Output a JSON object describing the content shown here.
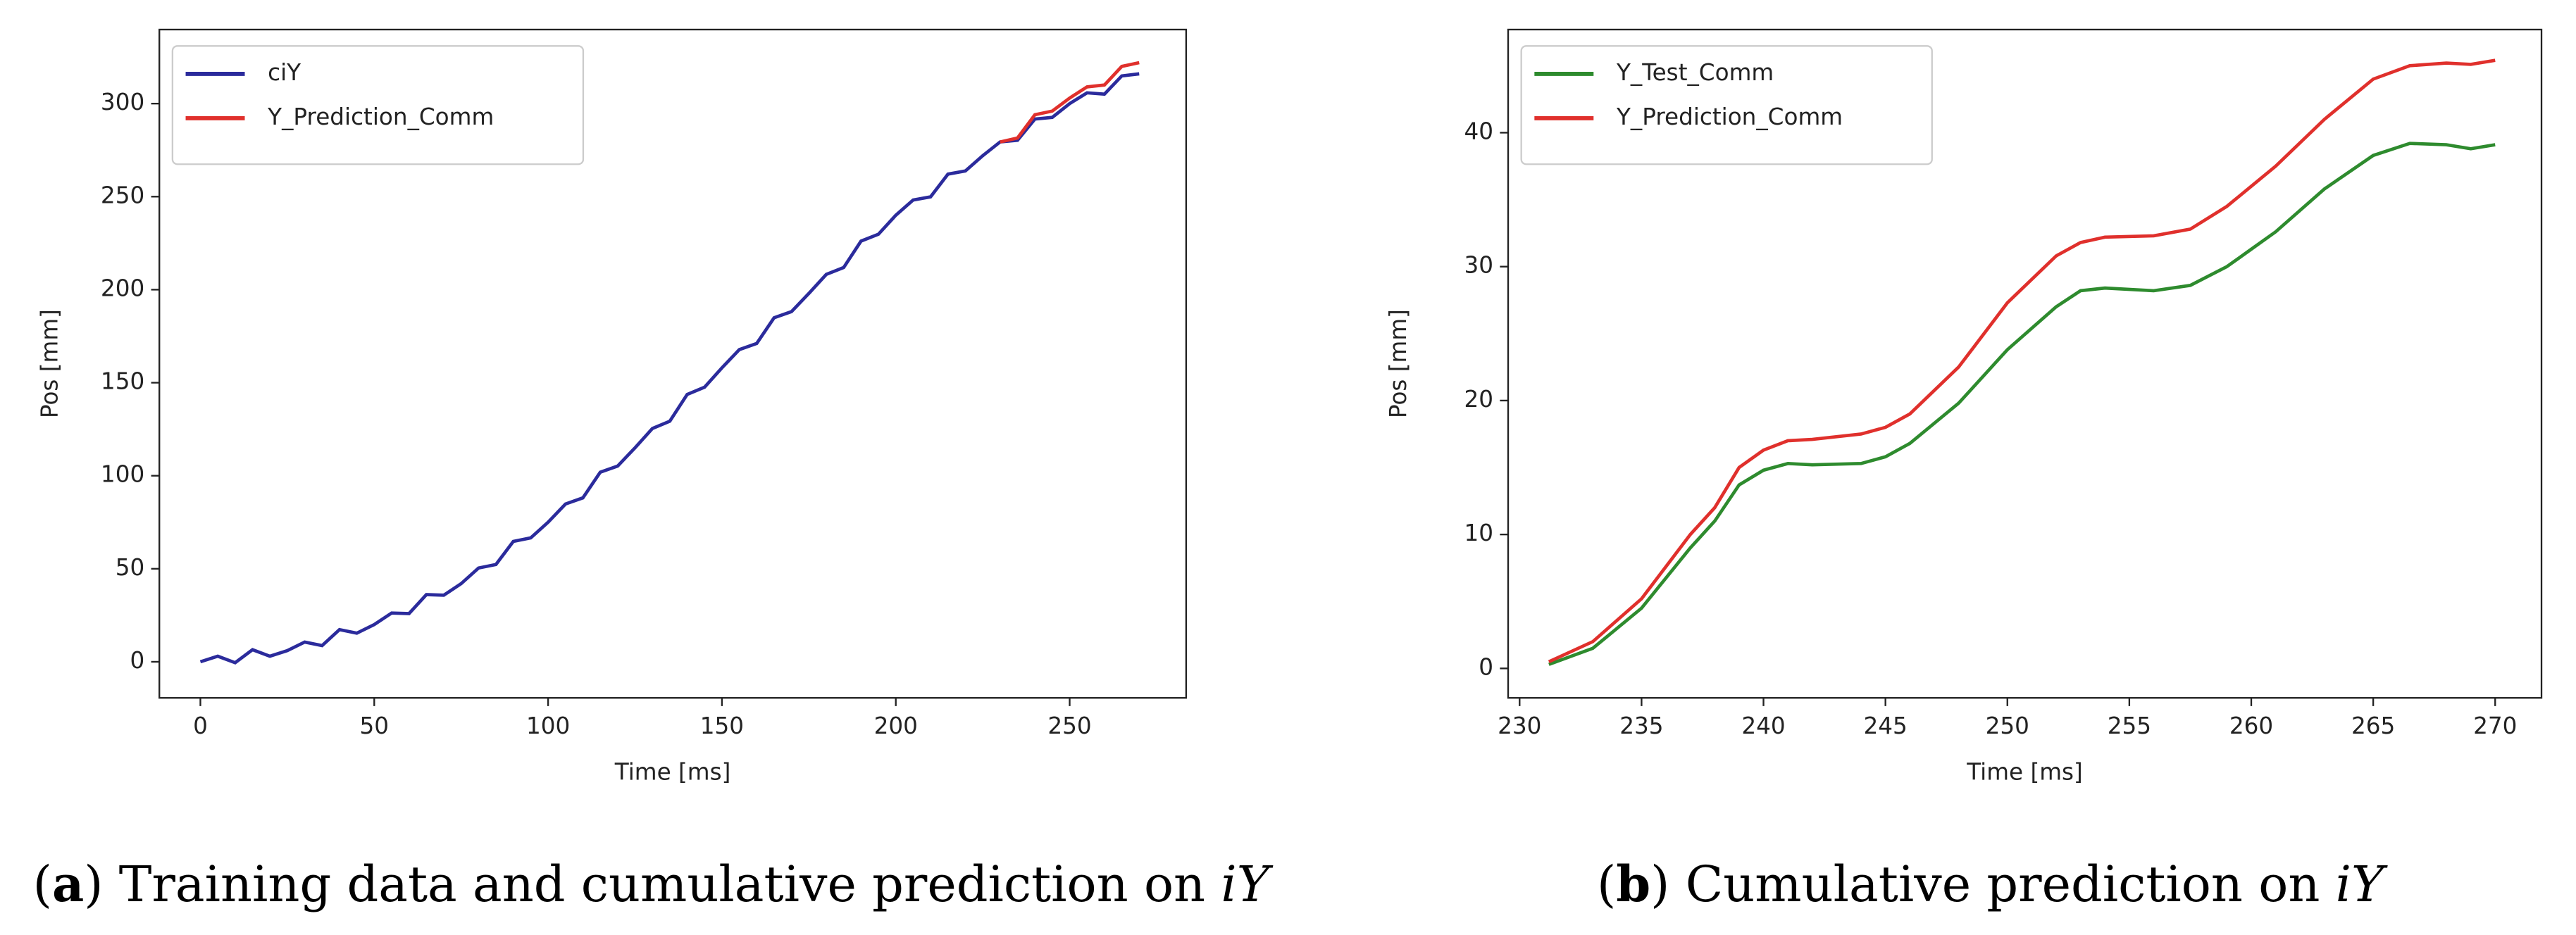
{
  "chart_data": [
    {
      "type": "line",
      "xlabel": "Time [ms]",
      "ylabel": "Pos [mm]",
      "caption": [
        "(",
        "a",
        ") Training data and cumulative prediction on ",
        "iY"
      ],
      "xlim": [
        -11.8,
        283.5
      ],
      "ylim": [
        -19.4,
        339.8
      ],
      "xticks": [
        0,
        50,
        100,
        150,
        200,
        250
      ],
      "yticks": [
        0,
        50,
        100,
        150,
        200,
        250,
        300
      ],
      "legend": "upper left",
      "series": [
        {
          "name": "ciY",
          "color": "#2b2b9c",
          "x": [
            0,
            5,
            10,
            15,
            20,
            25,
            30,
            35,
            40,
            45,
            50,
            55,
            60,
            65,
            70,
            75,
            80,
            85,
            90,
            95,
            100,
            105,
            110,
            115,
            120,
            125,
            130,
            135,
            140,
            145,
            150,
            155,
            160,
            165,
            170,
            175,
            180,
            185,
            190,
            195,
            200,
            205,
            210,
            215,
            220,
            225,
            230,
            235,
            240,
            245,
            250,
            255,
            260,
            265,
            270
          ],
          "values": [
            0,
            3.0,
            -0.5,
            6.5,
            3.0,
            6,
            10.6,
            8.7,
            17.3,
            15.4,
            20,
            26.2,
            25.9,
            36.1,
            35.8,
            42,
            50.4,
            52.3,
            64.7,
            66.6,
            75,
            84.8,
            88.1,
            101.9,
            105.2,
            115,
            125.4,
            129.3,
            143.7,
            147.6,
            158,
            167.8,
            171.1,
            184.9,
            188.2,
            198,
            208.2,
            211.9,
            226.1,
            229.8,
            240,
            248.2,
            249.9,
            262.1,
            263.8,
            272,
            279.4,
            280.3,
            291.7,
            292.6,
            300,
            305.8,
            305.1,
            314.9,
            316
          ]
        },
        {
          "name": "Y_Prediction_Comm",
          "color": "#e0302c",
          "x": [
            230,
            235,
            240,
            245,
            250,
            255,
            260,
            265,
            270
          ],
          "values": [
            279.4,
            281.5,
            294,
            296,
            303,
            309,
            310,
            320,
            322
          ]
        }
      ]
    },
    {
      "type": "line",
      "xlabel": "Time [ms]",
      "ylabel": "Pos [mm]",
      "caption": [
        "(",
        "b",
        ") Cumulative prediction on ",
        "iY"
      ],
      "xlim": [
        229.53,
        271.9
      ],
      "ylim": [
        -2.2,
        47.7
      ],
      "xticks": [
        230,
        235,
        240,
        245,
        250,
        255,
        260,
        265,
        270
      ],
      "yticks": [
        0,
        10,
        20,
        30,
        40
      ],
      "legend": "upper left",
      "x": [
        231.2,
        233,
        235,
        237,
        238,
        239,
        240,
        241,
        242,
        244,
        245,
        246,
        248,
        250,
        252,
        253,
        254,
        256,
        257.5,
        259,
        260,
        261,
        263,
        265,
        266.5,
        268,
        269,
        270
      ],
      "series": [
        {
          "name": "Y_Test_Comm",
          "color": "#2e8b2e",
          "values": [
            0.3,
            1.5,
            4.5,
            9,
            11,
            13.7,
            14.8,
            15.3,
            15.2,
            15.3,
            15.8,
            16.8,
            19.8,
            23.8,
            27,
            28.2,
            28.4,
            28.2,
            28.6,
            30,
            31.3,
            32.6,
            35.8,
            38.3,
            39.2,
            39.1,
            38.8,
            39.1
          ]
        },
        {
          "name": "Y_Prediction_Comm",
          "color": "#e0302c",
          "values": [
            0.5,
            2,
            5.2,
            10,
            12,
            15,
            16.3,
            17,
            17.1,
            17.5,
            18,
            19,
            22.5,
            27.3,
            30.8,
            31.8,
            32.2,
            32.3,
            32.8,
            34.5,
            36,
            37.5,
            41,
            44,
            45,
            45.2,
            45.1,
            45.4
          ]
        }
      ]
    }
  ]
}
